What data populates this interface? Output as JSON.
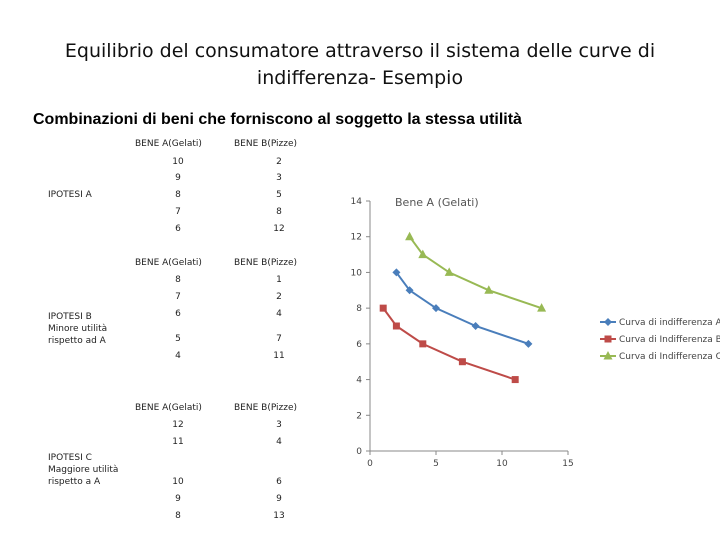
{
  "title_line1": "Equilibrio del consumatore attraverso il sistema delle curve di",
  "title_line2": "indifferenza- Esempio",
  "subtitle": "Combinazioni di beni che forniscono al soggetto la stessa utilità",
  "tables": [
    {
      "header_a": "BENE A(Gelati)",
      "header_b": "BENE B(Pizze)",
      "label_lines": [
        "IPOTESI A"
      ],
      "rows": [
        [
          "10",
          "2"
        ],
        [
          "9",
          "3"
        ],
        [
          "8",
          "5"
        ],
        [
          "7",
          "8"
        ],
        [
          "6",
          "12"
        ]
      ]
    },
    {
      "header_a": "BENE A(Gelati)",
      "header_b": "BENE B(Pizze)",
      "label_lines": [
        "IPOTESI B",
        "Minore utilità",
        "rispetto ad A"
      ],
      "rows": [
        [
          "8",
          "1"
        ],
        [
          "7",
          "2"
        ],
        [
          "6",
          "4"
        ],
        [
          "5",
          "7"
        ],
        [
          "4",
          "11"
        ]
      ]
    },
    {
      "header_a": "BENE A(Gelati)",
      "header_b": "BENE B(Pizze)",
      "label_lines": [
        "IPOTESI C",
        "Maggiore utilità",
        "rispetto a A"
      ],
      "rows": [
        [
          "12",
          "3"
        ],
        [
          "11",
          "4"
        ],
        [
          "10",
          "6"
        ],
        [
          "9",
          "9"
        ],
        [
          "8",
          "13"
        ]
      ]
    }
  ],
  "chart_data": {
    "type": "scatter",
    "title": "Bene A (Gelati)",
    "xlim": [
      0,
      15
    ],
    "ylim": [
      0,
      14
    ],
    "xticks": [
      0,
      5,
      10,
      15
    ],
    "yticks": [
      0,
      2,
      4,
      6,
      8,
      10,
      12,
      14
    ],
    "legend_position": "right",
    "series": [
      {
        "name": "Curva di indifferenza A",
        "color": "#4a7ebb",
        "marker": "diamond",
        "x": [
          2,
          3,
          5,
          8,
          12
        ],
        "y": [
          10,
          9,
          8,
          7,
          6
        ]
      },
      {
        "name": "Curva di Indifferenza B",
        "color": "#be4b48",
        "marker": "square",
        "x": [
          1,
          2,
          4,
          7,
          11
        ],
        "y": [
          8,
          7,
          6,
          5,
          4
        ]
      },
      {
        "name": "Curva di Indifferenza C",
        "color": "#98b954",
        "marker": "triangle",
        "x": [
          3,
          4,
          6,
          9,
          13
        ],
        "y": [
          12,
          11,
          10,
          9,
          8
        ]
      }
    ]
  }
}
